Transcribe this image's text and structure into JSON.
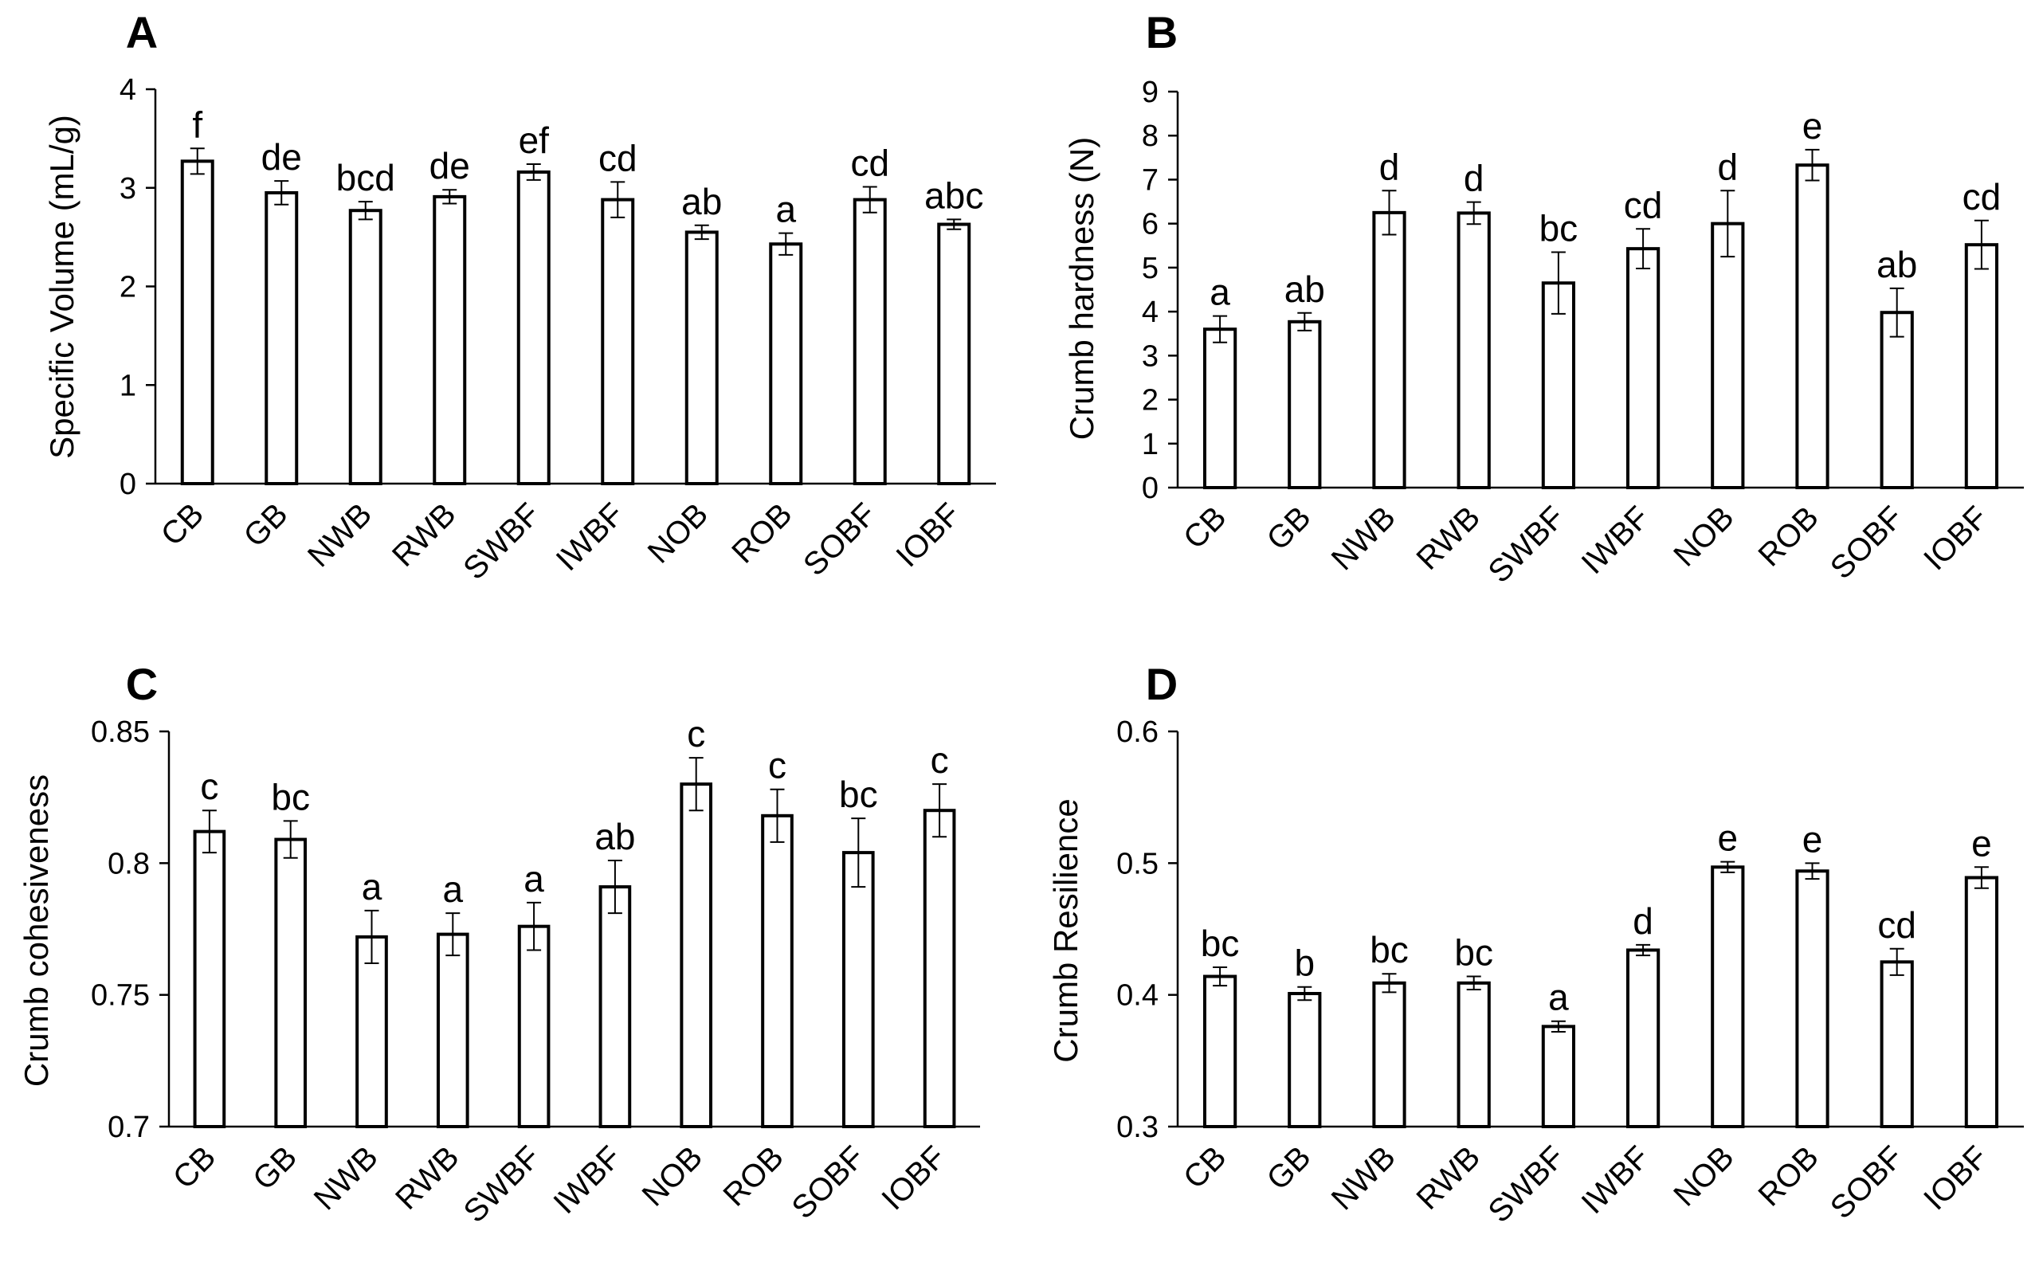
{
  "figure": {
    "background": "#ffffff",
    "bar_fill": "#ffffff",
    "stroke": "#000000",
    "error_color": "#000000"
  },
  "chart_data": [
    {
      "panel": "A",
      "type": "bar",
      "categories": [
        "CB",
        "GB",
        "NWB",
        "RWB",
        "SWBF",
        "IWBF",
        "NOB",
        "ROB",
        "SOBF",
        "IOBF"
      ],
      "values": [
        3.27,
        2.95,
        2.77,
        2.91,
        3.16,
        2.88,
        2.55,
        2.43,
        2.88,
        2.63
      ],
      "errors": [
        0.13,
        0.12,
        0.09,
        0.07,
        0.08,
        0.18,
        0.07,
        0.11,
        0.13,
        0.05
      ],
      "significance": [
        "f",
        "de",
        "bcd",
        "de",
        "ef",
        "cd",
        "ab",
        "a",
        "cd",
        "abc"
      ],
      "ylabel": "Specific Volume (mL/g)",
      "xlabel": "",
      "ylim": [
        0,
        4
      ],
      "yticks": [
        0,
        1,
        2,
        3,
        4
      ],
      "ytick_labels": [
        "0",
        "1",
        "2",
        "3",
        "4"
      ]
    },
    {
      "panel": "B",
      "type": "bar",
      "categories": [
        "CB",
        "GB",
        "NWB",
        "RWB",
        "SWBF",
        "IWBF",
        "NOB",
        "ROB",
        "SOBF",
        "IOBF"
      ],
      "values": [
        3.6,
        3.77,
        6.25,
        6.24,
        4.65,
        5.43,
        6.0,
        7.33,
        3.98,
        5.52
      ],
      "errors": [
        0.3,
        0.2,
        0.5,
        0.25,
        0.7,
        0.45,
        0.75,
        0.35,
        0.55,
        0.55
      ],
      "significance": [
        "a",
        "ab",
        "d",
        "d",
        "bc",
        "cd",
        "d",
        "e",
        "ab",
        "cd"
      ],
      "ylabel": "Crumb hardness (N)",
      "xlabel": "",
      "ylim": [
        0,
        9
      ],
      "yticks": [
        0,
        1,
        2,
        3,
        4,
        5,
        6,
        7,
        8,
        9
      ],
      "ytick_labels": [
        "0",
        "1",
        "2",
        "3",
        "4",
        "5",
        "6",
        "7",
        "8",
        "9"
      ]
    },
    {
      "panel": "C",
      "type": "bar",
      "categories": [
        "CB",
        "GB",
        "NWB",
        "RWB",
        "SWBF",
        "IWBF",
        "NOB",
        "ROB",
        "SOBF",
        "IOBF"
      ],
      "values": [
        0.812,
        0.809,
        0.772,
        0.773,
        0.776,
        0.791,
        0.83,
        0.818,
        0.804,
        0.82
      ],
      "errors": [
        0.008,
        0.007,
        0.01,
        0.008,
        0.009,
        0.01,
        0.01,
        0.01,
        0.013,
        0.01
      ],
      "significance": [
        "c",
        "bc",
        "a",
        "a",
        "a",
        "ab",
        "c",
        "c",
        "bc",
        "c"
      ],
      "ylabel": "Crumb  cohesiveness",
      "xlabel": "",
      "ylim": [
        0.7,
        0.85
      ],
      "yticks": [
        0.7,
        0.75,
        0.8,
        0.85
      ],
      "ytick_labels": [
        "0.7",
        "0.75",
        "0.8",
        "0.85"
      ]
    },
    {
      "panel": "D",
      "type": "bar",
      "categories": [
        "CB",
        "GB",
        "NWB",
        "RWB",
        "SWBF",
        "IWBF",
        "NOB",
        "ROB",
        "SOBF",
        "IOBF"
      ],
      "values": [
        0.414,
        0.401,
        0.409,
        0.409,
        0.376,
        0.434,
        0.497,
        0.494,
        0.425,
        0.489
      ],
      "errors": [
        0.007,
        0.005,
        0.007,
        0.005,
        0.004,
        0.004,
        0.004,
        0.006,
        0.01,
        0.008
      ],
      "significance": [
        "bc",
        "b",
        "bc",
        "bc",
        "a",
        "d",
        "e",
        "e",
        "cd",
        "e"
      ],
      "ylabel": "Crumb  Resilience",
      "xlabel": "",
      "ylim": [
        0.3,
        0.6
      ],
      "yticks": [
        0.3,
        0.4,
        0.5,
        0.6
      ],
      "ytick_labels": [
        "0.3",
        "0.4",
        "0.5",
        "0.6"
      ]
    }
  ]
}
